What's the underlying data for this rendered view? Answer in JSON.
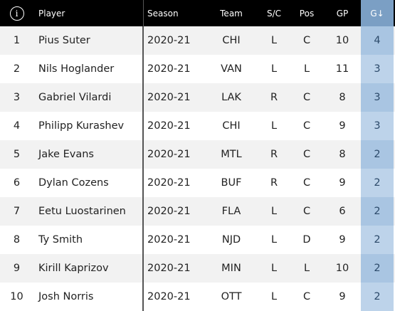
{
  "header": {
    "info_icon": "info-icon",
    "player": "Player",
    "season": "Season",
    "team": "Team",
    "sc": "S/C",
    "pos": "Pos",
    "gp": "GP",
    "g": "G↓"
  },
  "rows": [
    {
      "rank": "1",
      "player": "Pius Suter",
      "season": "2020-21",
      "team": "CHI",
      "sc": "L",
      "pos": "C",
      "gp": "10",
      "g": "4"
    },
    {
      "rank": "2",
      "player": "Nils Hoglander",
      "season": "2020-21",
      "team": "VAN",
      "sc": "L",
      "pos": "L",
      "gp": "11",
      "g": "3"
    },
    {
      "rank": "3",
      "player": "Gabriel Vilardi",
      "season": "2020-21",
      "team": "LAK",
      "sc": "R",
      "pos": "C",
      "gp": "8",
      "g": "3"
    },
    {
      "rank": "4",
      "player": "Philipp Kurashev",
      "season": "2020-21",
      "team": "CHI",
      "sc": "L",
      "pos": "C",
      "gp": "9",
      "g": "3"
    },
    {
      "rank": "5",
      "player": "Jake Evans",
      "season": "2020-21",
      "team": "MTL",
      "sc": "R",
      "pos": "C",
      "gp": "8",
      "g": "2"
    },
    {
      "rank": "6",
      "player": "Dylan Cozens",
      "season": "2020-21",
      "team": "BUF",
      "sc": "R",
      "pos": "C",
      "gp": "9",
      "g": "2"
    },
    {
      "rank": "7",
      "player": "Eetu Luostarinen",
      "season": "2020-21",
      "team": "FLA",
      "sc": "L",
      "pos": "C",
      "gp": "6",
      "g": "2"
    },
    {
      "rank": "8",
      "player": "Ty Smith",
      "season": "2020-21",
      "team": "NJD",
      "sc": "L",
      "pos": "D",
      "gp": "9",
      "g": "2"
    },
    {
      "rank": "9",
      "player": "Kirill Kaprizov",
      "season": "2020-21",
      "team": "MIN",
      "sc": "L",
      "pos": "L",
      "gp": "10",
      "g": "2"
    },
    {
      "rank": "10",
      "player": "Josh Norris",
      "season": "2020-21",
      "team": "OTT",
      "sc": "L",
      "pos": "C",
      "gp": "9",
      "g": "2"
    }
  ],
  "colors": {
    "header_bg": "#000000",
    "sorted_header_bg": "#7b9fc4",
    "sorted_cell_bg": "#bdd3ea"
  }
}
